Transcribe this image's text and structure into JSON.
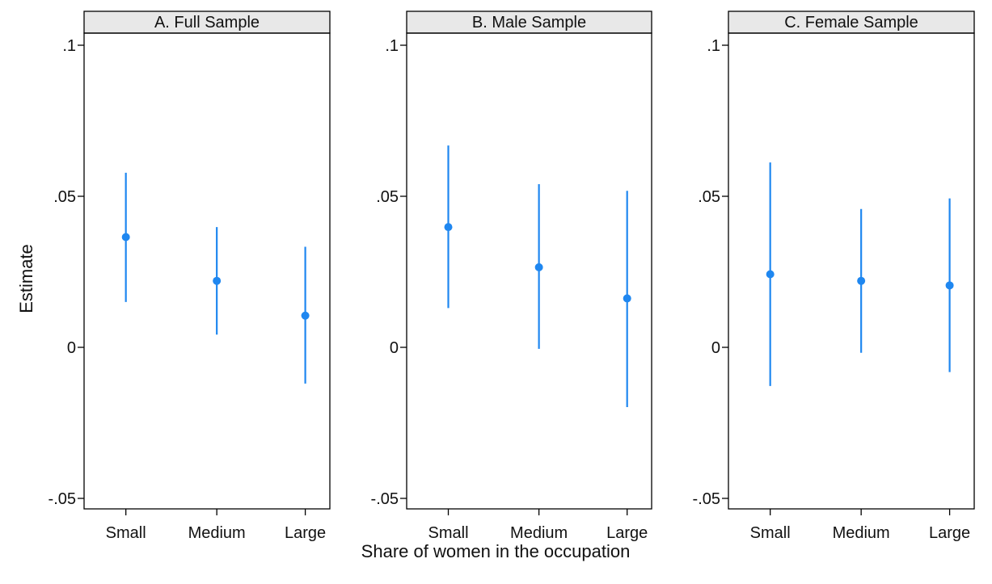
{
  "colors": {
    "marker": "#1f87f0",
    "frame": "#000000",
    "strip": "#e8e8e8",
    "background": "#ffffff"
  },
  "axes": {
    "ylabel": "Estimate",
    "xlabel": "Share of women in the occupation",
    "y_ticks": [
      ".1",
      ".05",
      "0",
      "-.05"
    ]
  },
  "chart_data": [
    {
      "type": "scatter",
      "title": "A. Full Sample",
      "categories": [
        "Small",
        "Medium",
        "Large"
      ],
      "estimates": [
        0.0365,
        0.022,
        0.0105
      ],
      "ci_lower": [
        0.015,
        0.0042,
        -0.012
      ],
      "ci_upper": [
        0.0578,
        0.0398,
        0.0333
      ],
      "ylim": [
        -0.053,
        0.103
      ],
      "y_ticks": [
        -0.05,
        0,
        0.05,
        0.1
      ],
      "grid": false
    },
    {
      "type": "scatter",
      "title": "B. Male Sample",
      "categories": [
        "Small",
        "Medium",
        "Large"
      ],
      "estimates": [
        0.0398,
        0.0265,
        0.0162
      ],
      "ci_lower": [
        0.013,
        -0.0005,
        -0.0198
      ],
      "ci_upper": [
        0.0668,
        0.054,
        0.0518
      ],
      "ylim": [
        -0.053,
        0.103
      ],
      "y_ticks": [
        -0.05,
        0,
        0.05,
        0.1
      ],
      "grid": false
    },
    {
      "type": "scatter",
      "title": "C. Female Sample",
      "categories": [
        "Small",
        "Medium",
        "Large"
      ],
      "estimates": [
        0.0242,
        0.022,
        0.0205
      ],
      "ci_lower": [
        -0.0128,
        -0.0018,
        -0.0082
      ],
      "ci_upper": [
        0.0612,
        0.0458,
        0.0493
      ],
      "ylim": [
        -0.053,
        0.103
      ],
      "y_ticks": [
        -0.05,
        0,
        0.05,
        0.1
      ],
      "grid": false
    }
  ]
}
